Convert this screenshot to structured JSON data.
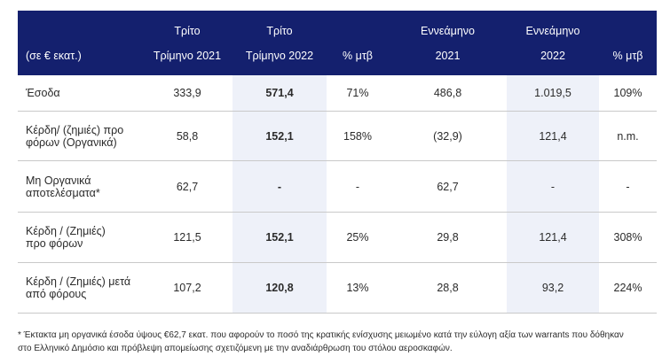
{
  "table": {
    "headers": {
      "unit": "(σε € εκατ.)",
      "q3_2021": [
        "Τρίτο",
        "Τρίμηνο 2021"
      ],
      "q3_2022": [
        "Τρίτο",
        "Τρίμηνο 2022"
      ],
      "pct_q": "% μτβ",
      "nm_2021": [
        "Εννεάμηνο",
        "2021"
      ],
      "nm_2022": [
        "Εννεάμηνο",
        "2022"
      ],
      "pct_nm": "% μτβ"
    },
    "rows": [
      {
        "label": "Έσοδα",
        "q3_2021": "333,9",
        "q3_2022": "571,4",
        "pct_q": "71%",
        "nm_2021": "486,8",
        "nm_2022": "1.019,5",
        "pct_nm": "109%"
      },
      {
        "label": "Κέρδη/ (ζημιές) προ φόρων (Οργανικά)",
        "q3_2021": "58,8",
        "q3_2022": "152,1",
        "pct_q": "158%",
        "nm_2021": "(32,9)",
        "nm_2022": "121,4",
        "pct_nm": "n.m."
      },
      {
        "label": "Μη Οργανικά αποτελέσματα*",
        "q3_2021": "62,7",
        "q3_2022": "-",
        "pct_q": "-",
        "nm_2021": "62,7",
        "nm_2022": "-",
        "pct_nm": "-"
      },
      {
        "label": "Κέρδη / (Ζημιές) προ φόρων",
        "q3_2021": "121,5",
        "q3_2022": "152,1",
        "pct_q": "25%",
        "nm_2021": "29,8",
        "nm_2022": "121,4",
        "pct_nm": "308%"
      },
      {
        "label": "Κέρδη / (Ζημιές) μετά από φόρους",
        "q3_2021": "107,2",
        "q3_2022": "120,8",
        "pct_q": "13%",
        "nm_2021": "28,8",
        "nm_2022": "93,2",
        "pct_nm": "224%"
      }
    ]
  },
  "footnote": {
    "line1": "* Έκτακτα μη οργανικά έσοδα ύψους €62,7 εκατ. που αφορούν το ποσό της κρατικής ενίσχυσης μειωμένο κατά την εύλογη αξία των warrants που δόθηκαν",
    "line2": "στο Ελληνικό Δημόσιο και πρόβλεψη απομείωσης σχετιζόμενη με την αναδιάρθρωση του στόλου αεροσκαφών."
  },
  "colors": {
    "header_bg": "#14206e",
    "highlight_band": "#eef1f9"
  }
}
